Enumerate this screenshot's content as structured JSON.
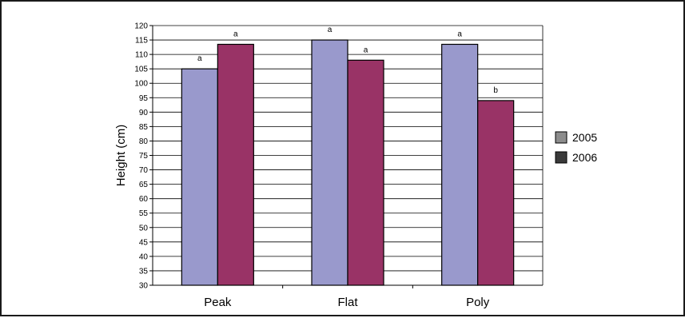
{
  "chart_data": {
    "type": "bar",
    "categories": [
      "Peak",
      "Flat",
      "Poly"
    ],
    "series": [
      {
        "name": "2005",
        "values": [
          105,
          115,
          113.5
        ],
        "color": "#9999cc",
        "legend_color": "#8c8c8c"
      },
      {
        "name": "2006",
        "values": [
          113.5,
          108,
          94
        ],
        "color": "#993366",
        "legend_color": "#3a3a3a"
      }
    ],
    "annotations": [
      [
        "a",
        "a"
      ],
      [
        "a",
        "a"
      ],
      [
        "a",
        "b"
      ]
    ],
    "xlabel": "",
    "ylabel": "Height (cm)",
    "ylim": [
      30,
      120
    ],
    "ytick_step": 5,
    "grid": true,
    "legend_position": "right"
  }
}
